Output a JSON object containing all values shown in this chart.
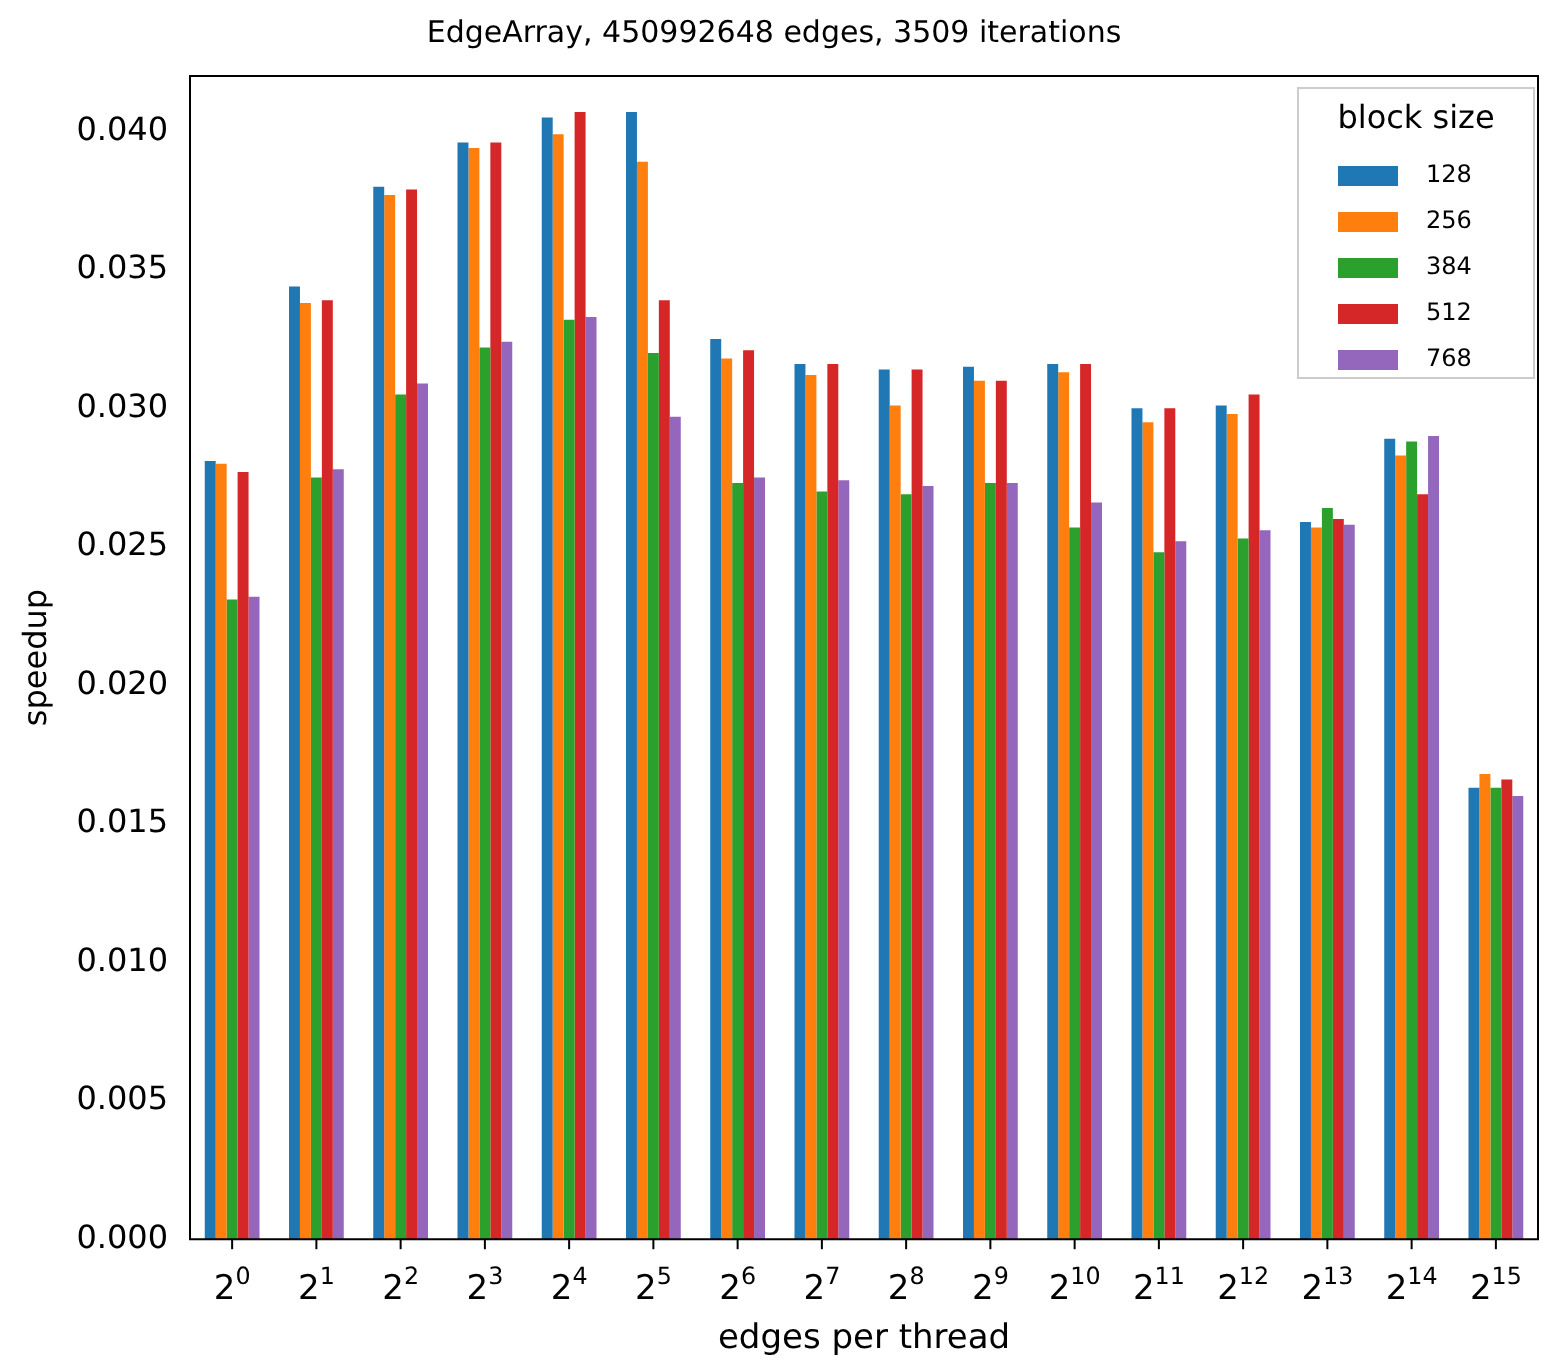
{
  "chart_data": {
    "type": "bar",
    "title": "EdgeArray, 450992648 edges, 3509 iterations",
    "xlabel": "edges per thread",
    "ylabel": "speedup",
    "legend_title": "block size",
    "legend": "top right",
    "grid": false,
    "categories": [
      "2$^{0}$",
      "2$^{1}$",
      "2$^{2}$",
      "2$^{3}$",
      "2$^{4}$",
      "2$^{5}$",
      "2$^{6}$",
      "2$^{7}$",
      "2$^{8}$",
      "2$^{9}$",
      "2$^{10}$",
      "2$^{11}$",
      "2$^{12}$",
      "2$^{13}$",
      "2$^{14}$",
      "2$^{15}$"
    ],
    "ylim": [
      0,
      0.042
    ],
    "yticks": [
      {
        "value": 0,
        "label": "0.000"
      },
      {
        "value": 0.005,
        "label": "0.005"
      },
      {
        "value": 0.01,
        "label": "0.010"
      },
      {
        "value": 0.015,
        "label": "0.015"
      },
      {
        "value": 0.02,
        "label": "0.020"
      },
      {
        "value": 0.025,
        "label": "0.025"
      },
      {
        "value": 0.03,
        "label": "0.030"
      },
      {
        "value": 0.035,
        "label": "0.035"
      },
      {
        "value": 0.04,
        "label": "0.040"
      }
    ],
    "series": [
      {
        "name": "128",
        "color": "#1f77b4",
        "values": [
          0.0281,
          0.0344,
          0.038,
          0.0396,
          0.0405,
          0.0407,
          0.0325,
          0.0316,
          0.0314,
          0.0315,
          0.0316,
          0.03,
          0.0301,
          0.0259,
          0.0289,
          0.0163
        ]
      },
      {
        "name": "256",
        "color": "#ff7f0e",
        "values": [
          0.028,
          0.0338,
          0.0377,
          0.0394,
          0.0399,
          0.0389,
          0.0318,
          0.0312,
          0.0301,
          0.031,
          0.0313,
          0.0295,
          0.0298,
          0.0257,
          0.0283,
          0.0168
        ]
      },
      {
        "name": "384",
        "color": "#2ca02c",
        "values": [
          0.0231,
          0.0275,
          0.0305,
          0.0322,
          0.0332,
          0.032,
          0.0273,
          0.027,
          0.0269,
          0.0273,
          0.0257,
          0.0248,
          0.0253,
          0.0264,
          0.0288,
          0.0163
        ]
      },
      {
        "name": "512",
        "color": "#d62728",
        "values": [
          0.0277,
          0.0339,
          0.0379,
          0.0396,
          0.0407,
          0.0339,
          0.0321,
          0.0316,
          0.0314,
          0.031,
          0.0316,
          0.03,
          0.0305,
          0.026,
          0.0269,
          0.0166
        ]
      },
      {
        "name": "768",
        "color": "#9467bd",
        "values": [
          0.0232,
          0.0278,
          0.0309,
          0.0324,
          0.0333,
          0.0297,
          0.0275,
          0.0274,
          0.0272,
          0.0273,
          0.0266,
          0.0252,
          0.0256,
          0.0258,
          0.029,
          0.016
        ]
      }
    ]
  }
}
